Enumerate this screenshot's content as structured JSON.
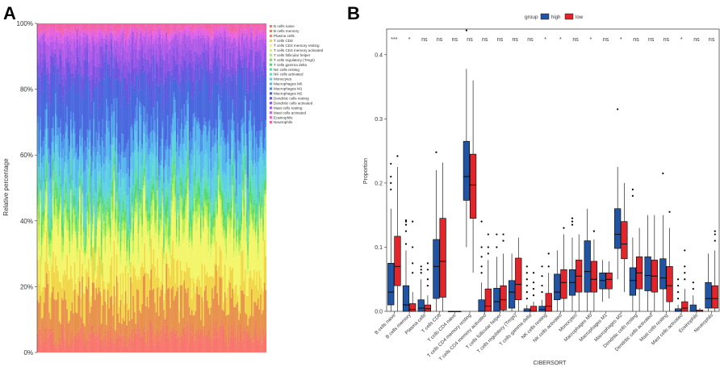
{
  "chart_data": [
    {
      "panel": "A",
      "type": "stacked-bar",
      "ylabel": "Relative percentage",
      "ytick_labels": [
        "0%",
        "20%",
        "40%",
        "60%",
        "80%",
        "100%"
      ],
      "ylim": [
        0,
        1
      ],
      "n_samples": 180,
      "legend_position": "right",
      "series": [
        {
          "name": "B cells naive",
          "color": "#f8766d",
          "mean": 0.04
        },
        {
          "name": "B cells memory",
          "color": "#f07f62",
          "mean": 0.02
        },
        {
          "name": "Plasma cells",
          "color": "#e8924e",
          "mean": 0.095
        },
        {
          "name": "T cells CD8",
          "color": "#f2d64a",
          "mean": 0.08
        },
        {
          "name": "T cells CD4 memory resting",
          "color": "#f3f56a",
          "mean": 0.12
        },
        {
          "name": "T cells CD4 memory activated",
          "color": "#d6f564",
          "mean": 0.015
        },
        {
          "name": "T cells follicular helper",
          "color": "#b4ef5a",
          "mean": 0.03
        },
        {
          "name": "T cells regulatory (Tregs)",
          "color": "#7fe05a",
          "mean": 0.02
        },
        {
          "name": "T cells gamma delta",
          "color": "#55d86f",
          "mean": 0.025
        },
        {
          "name": "NK cells resting",
          "color": "#5fe0a0",
          "mean": 0.025
        },
        {
          "name": "NK cells activated",
          "color": "#62dcc8",
          "mean": 0.03
        },
        {
          "name": "Monocytes",
          "color": "#5ed0e6",
          "mean": 0.055
        },
        {
          "name": "Macrophages M0",
          "color": "#58b8ee",
          "mean": 0.065
        },
        {
          "name": "Macrophages M1",
          "color": "#4f90e8",
          "mean": 0.045
        },
        {
          "name": "Macrophages M2",
          "color": "#4a68de",
          "mean": 0.13
        },
        {
          "name": "Dendritic cells resting",
          "color": "#6a56e0",
          "mean": 0.05
        },
        {
          "name": "Dendritic cells activated",
          "color": "#8f55e6",
          "mean": 0.04
        },
        {
          "name": "Mast cells resting",
          "color": "#b05ae8",
          "mean": 0.045
        },
        {
          "name": "Mast cells activated",
          "color": "#d060ea",
          "mean": 0.015
        },
        {
          "name": "Eosinophils",
          "color": "#ea62dc",
          "mean": 0.015
        },
        {
          "name": "Neutrophils",
          "color": "#f265a8",
          "mean": 0.02
        }
      ]
    },
    {
      "panel": "B",
      "type": "boxplot",
      "xlabel": "CIBERSORT",
      "ylabel": "Proportion",
      "ylim": [
        0,
        0.44
      ],
      "yticks": [
        0.0,
        0.1,
        0.2,
        0.3,
        0.4
      ],
      "ytick_labels": [
        "0.0",
        "0.1",
        "0.2",
        "0.3",
        "0.4"
      ],
      "legend_title": "group",
      "groups": [
        {
          "name": "high",
          "color": "#2155a3"
        },
        {
          "name": "low",
          "color": "#e2252b"
        }
      ],
      "categories": [
        {
          "name": "B cells naive",
          "sig": "***",
          "high": {
            "q1": 0.01,
            "median": 0.03,
            "q3": 0.075,
            "lo": 0.0,
            "hi": 0.16,
            "out": [
              0.19,
              0.2,
              0.21,
              0.23
            ]
          },
          "low": {
            "q1": 0.04,
            "median": 0.07,
            "q3": 0.117,
            "lo": 0.0,
            "hi": 0.225,
            "out": [
              0.242
            ]
          }
        },
        {
          "name": "B cells memory",
          "sig": "*",
          "high": {
            "q1": 0.0,
            "median": 0.01,
            "q3": 0.04,
            "lo": 0.0,
            "hi": 0.095,
            "out": [
              0.105,
              0.125,
              0.135,
              0.14,
              0.142
            ]
          },
          "low": {
            "q1": 0.0,
            "median": 0.003,
            "q3": 0.012,
            "lo": 0.0,
            "hi": 0.03,
            "out": [
              0.06,
              0.075,
              0.1,
              0.14
            ]
          }
        },
        {
          "name": "Plasma cells",
          "sig": "ns",
          "high": {
            "q1": 0.0,
            "median": 0.005,
            "q3": 0.018,
            "lo": 0.0,
            "hi": 0.05,
            "out": [
              0.06,
              0.065,
              0.07
            ]
          },
          "low": {
            "q1": 0.0,
            "median": 0.004,
            "q3": 0.01,
            "lo": 0.0,
            "hi": 0.025,
            "out": [
              0.04,
              0.05,
              0.065,
              0.075
            ]
          }
        },
        {
          "name": "T cells CD8",
          "sig": "ns",
          "high": {
            "q1": 0.02,
            "median": 0.07,
            "q3": 0.112,
            "lo": 0.0,
            "hi": 0.22,
            "out": [
              0.248
            ]
          },
          "low": {
            "q1": 0.022,
            "median": 0.078,
            "q3": 0.145,
            "lo": 0.0,
            "hi": 0.232,
            "out": []
          }
        },
        {
          "name": "T cells CD4 naive",
          "sig": "ns",
          "high": {
            "q1": 0.0,
            "median": 0.0,
            "q3": 0.0,
            "lo": 0.0,
            "hi": 0.0,
            "out": []
          },
          "low": {
            "q1": 0.0,
            "median": 0.0,
            "q3": 0.0,
            "lo": 0.0,
            "hi": 0.0,
            "out": []
          }
        },
        {
          "name": "T cells CD4 memory resting",
          "sig": "ns",
          "high": {
            "q1": 0.173,
            "median": 0.21,
            "q3": 0.265,
            "lo": 0.1,
            "hi": 0.378,
            "out": [
              0.438
            ]
          },
          "low": {
            "q1": 0.145,
            "median": 0.197,
            "q3": 0.245,
            "lo": 0.06,
            "hi": 0.36,
            "out": []
          }
        },
        {
          "name": "T cells CD4 memory activated",
          "sig": "ns",
          "high": {
            "q1": 0.0,
            "median": 0.0,
            "q3": 0.018,
            "lo": 0.0,
            "hi": 0.045,
            "out": [
              0.06,
              0.07,
              0.085,
              0.1,
              0.14
            ]
          },
          "low": {
            "q1": 0.0,
            "median": 0.008,
            "q3": 0.035,
            "lo": 0.0,
            "hi": 0.08,
            "out": [
              0.09,
              0.1,
              0.12
            ]
          }
        },
        {
          "name": "T cells follicular helper",
          "sig": "ns",
          "high": {
            "q1": 0.0,
            "median": 0.015,
            "q3": 0.036,
            "lo": 0.0,
            "hi": 0.085,
            "out": [
              0.1,
              0.12
            ]
          },
          "low": {
            "q1": 0.002,
            "median": 0.018,
            "q3": 0.04,
            "lo": 0.0,
            "hi": 0.09,
            "out": [
              0.11,
              0.12
            ]
          }
        },
        {
          "name": "T cells regulatory (Tregs)",
          "sig": "ns",
          "high": {
            "q1": 0.005,
            "median": 0.03,
            "q3": 0.048,
            "lo": 0.0,
            "hi": 0.09,
            "out": []
          },
          "low": {
            "q1": 0.018,
            "median": 0.042,
            "q3": 0.083,
            "lo": 0.0,
            "hi": 0.115,
            "out": []
          }
        },
        {
          "name": "T cells gamma delta",
          "sig": "ns",
          "high": {
            "q1": 0.0,
            "median": 0.0,
            "q3": 0.004,
            "lo": 0.0,
            "hi": 0.01,
            "out": [
              0.02,
              0.03,
              0.04,
              0.05,
              0.06,
              0.07
            ]
          },
          "low": {
            "q1": 0.0,
            "median": 0.0,
            "q3": 0.008,
            "lo": 0.0,
            "hi": 0.015,
            "out": [
              0.025,
              0.035,
              0.045,
              0.06
            ]
          }
        },
        {
          "name": "NK cells resting",
          "sig": "*",
          "high": {
            "q1": 0.0,
            "median": 0.003,
            "q3": 0.008,
            "lo": 0.0,
            "hi": 0.018,
            "out": [
              0.03,
              0.04,
              0.055,
              0.07
            ]
          },
          "low": {
            "q1": 0.0,
            "median": 0.008,
            "q3": 0.028,
            "lo": 0.0,
            "hi": 0.06,
            "out": [
              0.07,
              0.09
            ]
          }
        },
        {
          "name": "NK cells activated",
          "sig": "*",
          "high": {
            "q1": 0.018,
            "median": 0.03,
            "q3": 0.058,
            "lo": 0.0,
            "hi": 0.095,
            "out": []
          },
          "low": {
            "q1": 0.02,
            "median": 0.045,
            "q3": 0.065,
            "lo": 0.0,
            "hi": 0.12,
            "out": [
              0.13
            ]
          }
        },
        {
          "name": "Monocytes",
          "sig": "ns",
          "high": {
            "q1": 0.025,
            "median": 0.045,
            "q3": 0.065,
            "lo": 0.0,
            "hi": 0.115,
            "out": [
              0.135,
              0.14,
              0.145
            ]
          },
          "low": {
            "q1": 0.03,
            "median": 0.055,
            "q3": 0.08,
            "lo": 0.0,
            "hi": 0.12,
            "out": []
          }
        },
        {
          "name": "Macrophages M0",
          "sig": "*",
          "high": {
            "q1": 0.03,
            "median": 0.062,
            "q3": 0.11,
            "lo": 0.0,
            "hi": 0.16,
            "out": []
          },
          "low": {
            "q1": 0.03,
            "median": 0.05,
            "q3": 0.078,
            "lo": 0.0,
            "hi": 0.112,
            "out": [
              0.125
            ]
          }
        },
        {
          "name": "Macrophages M1",
          "sig": "ns",
          "high": {
            "q1": 0.035,
            "median": 0.048,
            "q3": 0.06,
            "lo": 0.015,
            "hi": 0.08,
            "out": []
          },
          "low": {
            "q1": 0.035,
            "median": 0.05,
            "q3": 0.06,
            "lo": 0.02,
            "hi": 0.078,
            "out": []
          }
        },
        {
          "name": "Macrophages M2",
          "sig": "*",
          "high": {
            "q1": 0.098,
            "median": 0.12,
            "q3": 0.16,
            "lo": 0.05,
            "hi": 0.225,
            "out": [
              0.315
            ]
          },
          "low": {
            "q1": 0.082,
            "median": 0.105,
            "q3": 0.14,
            "lo": 0.03,
            "hi": 0.2,
            "out": []
          }
        },
        {
          "name": "Dendritic cells resting",
          "sig": "ns",
          "high": {
            "q1": 0.025,
            "median": 0.048,
            "q3": 0.068,
            "lo": 0.0,
            "hi": 0.115,
            "out": [
              0.18,
              0.19
            ]
          },
          "low": {
            "q1": 0.035,
            "median": 0.06,
            "q3": 0.085,
            "lo": 0.0,
            "hi": 0.13,
            "out": []
          }
        },
        {
          "name": "Dendritic cells activated",
          "sig": "ns",
          "high": {
            "q1": 0.032,
            "median": 0.056,
            "q3": 0.085,
            "lo": 0.0,
            "hi": 0.15,
            "out": []
          },
          "low": {
            "q1": 0.03,
            "median": 0.055,
            "q3": 0.08,
            "lo": 0.0,
            "hi": 0.15,
            "out": []
          }
        },
        {
          "name": "Mast cells resting",
          "sig": "ns",
          "high": {
            "q1": 0.035,
            "median": 0.052,
            "q3": 0.082,
            "lo": 0.0,
            "hi": 0.15,
            "out": [
              0.215
            ]
          },
          "low": {
            "q1": 0.015,
            "median": 0.04,
            "q3": 0.07,
            "lo": 0.0,
            "hi": 0.13,
            "out": [
              0.155
            ]
          }
        },
        {
          "name": "Mast cells activated",
          "sig": "*",
          "high": {
            "q1": 0.0,
            "median": 0.0,
            "q3": 0.004,
            "lo": 0.0,
            "hi": 0.01,
            "out": [
              0.02,
              0.03,
              0.04,
              0.05
            ]
          },
          "low": {
            "q1": 0.0,
            "median": 0.005,
            "q3": 0.015,
            "lo": 0.0,
            "hi": 0.035,
            "out": [
              0.05,
              0.06,
              0.07,
              0.095
            ]
          }
        },
        {
          "name": "Eosinophils",
          "sig": "ns",
          "high": {
            "q1": 0.0,
            "median": 0.0,
            "q3": 0.01,
            "lo": 0.0,
            "hi": 0.025,
            "out": [
              0.035,
              0.045
            ]
          },
          "low": {
            "q1": 0.0,
            "median": 0.0,
            "q3": 0.002,
            "lo": 0.0,
            "hi": 0.005,
            "out": []
          }
        },
        {
          "name": "Neutrophils",
          "sig": "ns",
          "high": {
            "q1": 0.005,
            "median": 0.02,
            "q3": 0.045,
            "lo": 0.0,
            "hi": 0.09,
            "out": []
          },
          "low": {
            "q1": 0.005,
            "median": 0.02,
            "q3": 0.04,
            "lo": 0.0,
            "hi": 0.095,
            "out": [
              0.11,
              0.12,
              0.125
            ]
          }
        }
      ]
    }
  ],
  "panel_labels": {
    "a": "A",
    "b": "B"
  }
}
